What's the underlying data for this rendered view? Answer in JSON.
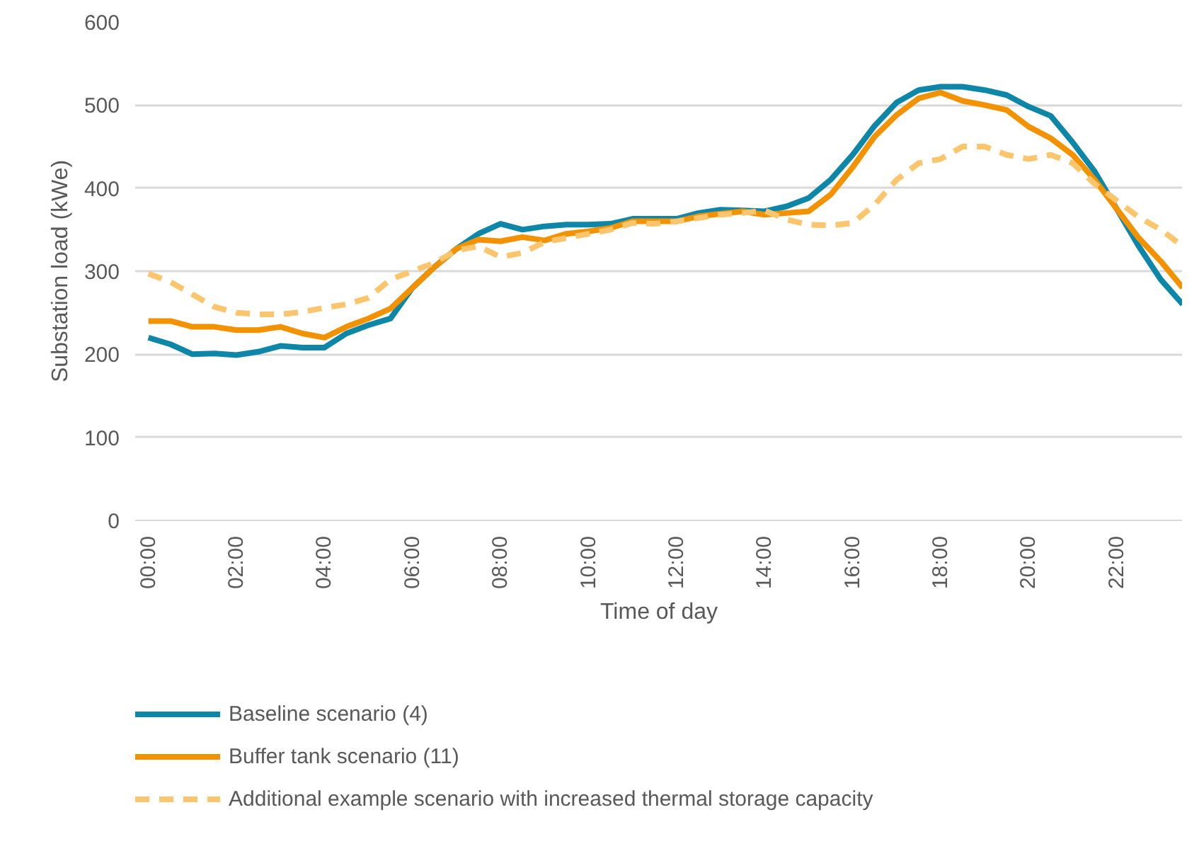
{
  "chart_data": {
    "type": "line",
    "xlabel": "Time of day",
    "ylabel": "Substation load (kWe)",
    "x": [
      0,
      0.5,
      1,
      1.5,
      2,
      2.5,
      3,
      3.5,
      4,
      4.5,
      5,
      5.5,
      6,
      6.5,
      7,
      7.5,
      8,
      8.5,
      9,
      9.5,
      10,
      10.5,
      11,
      11.5,
      12,
      12.5,
      13,
      13.5,
      14,
      14.5,
      15,
      15.5,
      16,
      16.5,
      17,
      17.5,
      18,
      18.5,
      19,
      19.5,
      20,
      20.5,
      21,
      21.5,
      22,
      22.5,
      23,
      23.5
    ],
    "xlim": [
      -0.3,
      23.5
    ],
    "xticks": [
      {
        "value": 0,
        "label": "00:00"
      },
      {
        "value": 2,
        "label": "02:00"
      },
      {
        "value": 4,
        "label": "04:00"
      },
      {
        "value": 6,
        "label": "06:00"
      },
      {
        "value": 8,
        "label": "08:00"
      },
      {
        "value": 10,
        "label": "10:00"
      },
      {
        "value": 12,
        "label": "12:00"
      },
      {
        "value": 14,
        "label": "14:00"
      },
      {
        "value": 16,
        "label": "16:00"
      },
      {
        "value": 18,
        "label": "18:00"
      },
      {
        "value": 20,
        "label": "20:00"
      },
      {
        "value": 22,
        "label": "22:00"
      }
    ],
    "ylim": [
      0,
      600
    ],
    "yticks": [
      0,
      100,
      200,
      300,
      400,
      500,
      600
    ],
    "grid": "y",
    "legend": "bottom",
    "series": [
      {
        "name": "Baseline scenario (4)",
        "color": "#0e86a8",
        "line_style": "solid",
        "values": [
          220,
          212,
          200,
          201,
          199,
          203,
          210,
          208,
          208,
          225,
          235,
          243,
          280,
          305,
          327,
          345,
          357,
          350,
          354,
          356,
          356,
          357,
          363,
          363,
          363,
          370,
          374,
          373,
          372,
          378,
          388,
          410,
          440,
          475,
          503,
          518,
          522,
          522,
          518,
          512,
          498,
          487,
          455,
          420,
          375,
          330,
          290,
          260
        ]
      },
      {
        "name": "Buffer tank scenario (11)",
        "color": "#f39200",
        "line_style": "solid",
        "values": [
          240,
          240,
          233,
          233,
          229,
          229,
          233,
          225,
          220,
          233,
          243,
          255,
          280,
          305,
          327,
          338,
          336,
          341,
          337,
          345,
          348,
          352,
          360,
          360,
          360,
          366,
          369,
          372,
          368,
          370,
          372,
          392,
          425,
          462,
          488,
          508,
          515,
          505,
          500,
          494,
          474,
          460,
          440,
          410,
          375,
          340,
          312,
          280
        ]
      },
      {
        "name": "Additional example scenario with increased thermal storage capacity",
        "color": "#fbc56d",
        "line_style": "dashed",
        "values": [
          297,
          287,
          272,
          257,
          250,
          248,
          248,
          251,
          256,
          260,
          268,
          290,
          300,
          310,
          325,
          330,
          317,
          322,
          335,
          340,
          345,
          350,
          358,
          357,
          360,
          364,
          368,
          370,
          373,
          362,
          356,
          355,
          358,
          380,
          410,
          430,
          435,
          450,
          450,
          440,
          435,
          440,
          430,
          405,
          385,
          365,
          350,
          330
        ]
      }
    ]
  }
}
